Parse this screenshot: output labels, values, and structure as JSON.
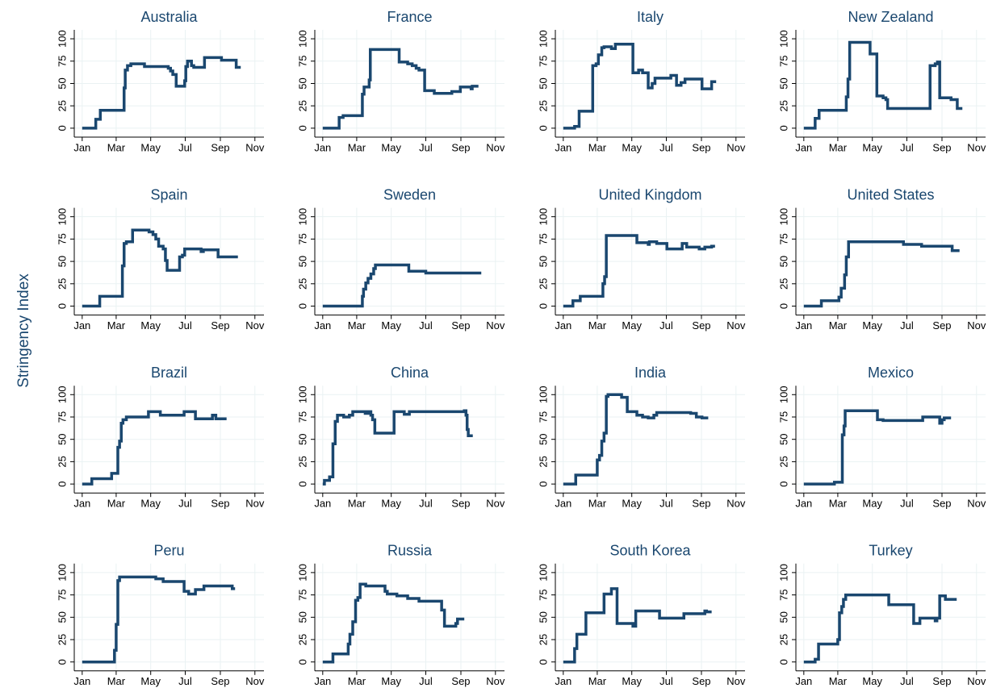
{
  "chart_data": {
    "type": "line",
    "step": true,
    "grid": true,
    "color": "#1a476f",
    "y_label": "Stringency Index",
    "xlim": [
      -14,
      321
    ],
    "ylim": [
      -10,
      110
    ],
    "xticks": [
      {
        "value": 0,
        "label": "Jan"
      },
      {
        "value": 60,
        "label": "Mar"
      },
      {
        "value": 121,
        "label": "May"
      },
      {
        "value": 182,
        "label": "Jul"
      },
      {
        "value": 244,
        "label": "Sep"
      },
      {
        "value": 305,
        "label": "Nov"
      }
    ],
    "yticks": [
      0,
      25,
      50,
      75,
      100
    ],
    "panels": [
      {
        "title": "Australia",
        "x": [
          0,
          24,
          32,
          74,
          76,
          80,
          86,
          110,
          152,
          156,
          160,
          166,
          181,
          183,
          186,
          193,
          197,
          216,
          246,
          272,
          280
        ],
        "values": [
          0,
          10,
          20,
          45,
          65,
          70,
          72,
          69,
          67,
          64,
          60,
          47,
          53,
          69,
          75,
          70,
          68,
          79,
          76,
          68,
          68
        ]
      },
      {
        "title": "France",
        "x": [
          0,
          29,
          36,
          70,
          73,
          82,
          84,
          135,
          150,
          158,
          165,
          170,
          180,
          197,
          228,
          243,
          262,
          264,
          275
        ],
        "values": [
          0,
          12,
          14,
          38,
          46,
          54,
          88,
          74,
          72,
          70,
          67,
          65,
          42,
          39,
          41,
          46,
          44,
          47,
          47
        ]
      },
      {
        "title": "Italy",
        "x": [
          0,
          20,
          28,
          52,
          58,
          62,
          68,
          72,
          85,
          92,
          123,
          133,
          140,
          150,
          157,
          162,
          190,
          200,
          208,
          215,
          245,
          262,
          270
        ],
        "values": [
          0,
          2,
          19,
          70,
          72,
          82,
          90,
          91,
          89,
          94,
          62,
          65,
          62,
          45,
          50,
          56,
          59,
          48,
          51,
          55,
          44,
          52,
          52
        ]
      },
      {
        "title": "New Zealand",
        "x": [
          0,
          20,
          27,
          75,
          78,
          81,
          117,
          129,
          140,
          145,
          148,
          223,
          232,
          236,
          240,
          260,
          271,
          280
        ],
        "values": [
          0,
          11,
          20,
          35,
          55,
          96,
          83,
          36,
          34,
          32,
          22,
          70,
          72,
          74,
          34,
          32,
          22,
          22
        ]
      },
      {
        "title": "Spain",
        "x": [
          0,
          31,
          71,
          74,
          78,
          89,
          118,
          125,
          130,
          135,
          143,
          147,
          150,
          172,
          177,
          181,
          210,
          214,
          240,
          275
        ],
        "values": [
          0,
          11,
          45,
          70,
          72,
          85,
          83,
          80,
          75,
          67,
          64,
          51,
          40,
          55,
          57,
          64,
          61,
          63,
          55,
          55
        ]
      },
      {
        "title": "Sweden",
        "x": [
          0,
          70,
          72,
          76,
          80,
          85,
          90,
          93,
          152,
          182,
          280
        ],
        "values": [
          0,
          11,
          19,
          26,
          31,
          36,
          42,
          46,
          39,
          37,
          37
        ]
      },
      {
        "title": "United Kingdom",
        "x": [
          0,
          17,
          30,
          70,
          73,
          76,
          130,
          150,
          152,
          165,
          183,
          210,
          218,
          240,
          250,
          262,
          268
        ],
        "values": [
          0,
          6,
          11,
          25,
          33,
          79,
          71,
          69,
          72,
          70,
          64,
          70,
          66,
          64,
          66,
          67,
          67
        ]
      },
      {
        "title": "United States",
        "x": [
          0,
          31,
          62,
          66,
          72,
          75,
          79,
          176,
          208,
          262,
          275
        ],
        "values": [
          0,
          6,
          10,
          20,
          35,
          55,
          72,
          69,
          67,
          62,
          62
        ]
      },
      {
        "title": "Brazil",
        "x": [
          0,
          17,
          52,
          63,
          66,
          69,
          72,
          78,
          117,
          138,
          180,
          200,
          230,
          236,
          255
        ],
        "values": [
          0,
          6,
          12,
          41,
          48,
          68,
          72,
          75,
          81,
          77,
          81,
          73,
          77,
          73,
          73
        ]
      },
      {
        "title": "China",
        "x": [
          0,
          3,
          12,
          18,
          22,
          26,
          37,
          47,
          53,
          75,
          80,
          85,
          88,
          92,
          126,
          144,
          153,
          250,
          253,
          255,
          257,
          265
        ],
        "values": [
          0,
          4,
          8,
          45,
          70,
          77,
          75,
          77,
          81,
          79,
          81,
          77,
          72,
          57,
          81,
          78,
          81,
          82,
          77,
          61,
          54,
          54
        ]
      },
      {
        "title": "India",
        "x": [
          0,
          22,
          60,
          64,
          68,
          72,
          76,
          79,
          103,
          113,
          130,
          140,
          150,
          160,
          165,
          225,
          235,
          245,
          256
        ],
        "values": [
          0,
          10,
          27,
          32,
          48,
          57,
          98,
          100,
          97,
          81,
          77,
          75,
          74,
          77,
          80,
          79,
          75,
          74,
          74
        ]
      },
      {
        "title": "Mexico",
        "x": [
          0,
          54,
          68,
          71,
          73,
          130,
          140,
          210,
          240,
          244,
          248,
          260
        ],
        "values": [
          0,
          2,
          55,
          65,
          82,
          72,
          71,
          75,
          68,
          72,
          74,
          74
        ]
      },
      {
        "title": "Peru",
        "x": [
          0,
          57,
          60,
          63,
          66,
          130,
          143,
          180,
          188,
          200,
          215,
          265,
          270
        ],
        "values": [
          0,
          13,
          42,
          91,
          95,
          93,
          90,
          79,
          76,
          81,
          85,
          82,
          82
        ]
      },
      {
        "title": "Russia",
        "x": [
          0,
          18,
          45,
          48,
          53,
          58,
          62,
          66,
          76,
          110,
          114,
          131,
          150,
          170,
          210,
          215,
          235,
          238,
          250
        ],
        "values": [
          0,
          9,
          20,
          31,
          45,
          69,
          72,
          87,
          85,
          79,
          76,
          74,
          71,
          68,
          58,
          40,
          43,
          48,
          48
        ]
      },
      {
        "title": "South Korea",
        "x": [
          0,
          20,
          24,
          40,
          72,
          85,
          95,
          123,
          128,
          170,
          213,
          250,
          253,
          262
        ],
        "values": [
          0,
          15,
          31,
          55,
          76,
          82,
          43,
          40,
          57,
          49,
          54,
          57,
          56,
          56
        ]
      },
      {
        "title": "Turkey",
        "x": [
          0,
          20,
          26,
          60,
          63,
          67,
          70,
          74,
          150,
          194,
          205,
          232,
          235,
          240,
          250,
          270
        ],
        "values": [
          0,
          3,
          20,
          25,
          55,
          62,
          70,
          75,
          64,
          43,
          49,
          46,
          49,
          74,
          70,
          70
        ]
      }
    ]
  }
}
